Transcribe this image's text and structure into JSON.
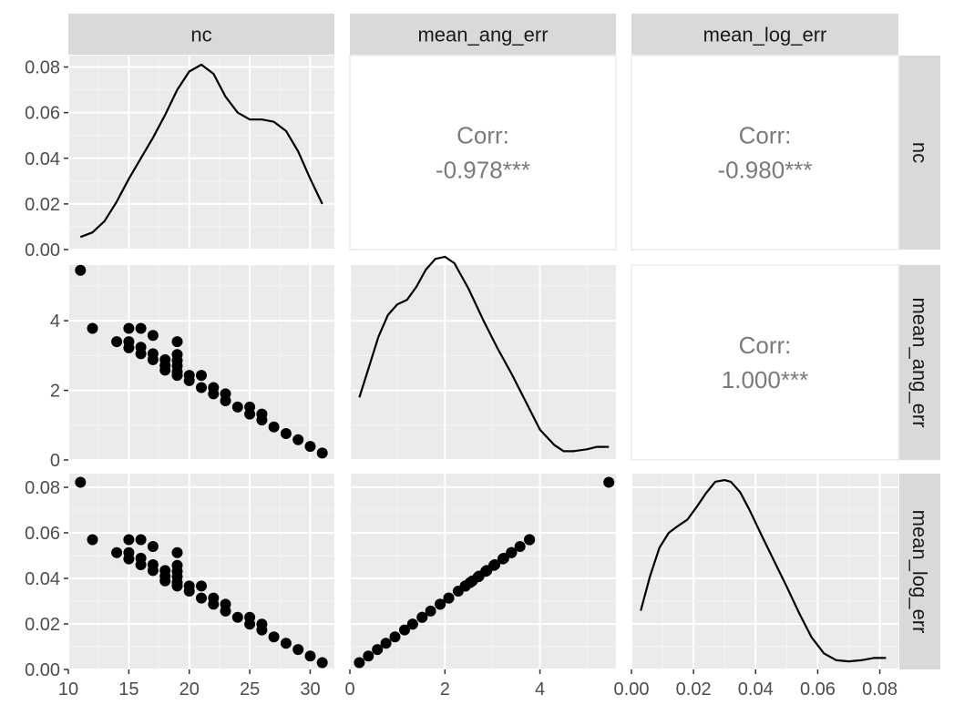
{
  "chart_data": {
    "type": "scatter-matrix",
    "variables": [
      "nc",
      "mean_ang_err",
      "mean_log_err"
    ],
    "axis_ticks": {
      "nc": [
        "10",
        "15",
        "20",
        "25",
        "30"
      ],
      "mean_ang_err": [
        "0",
        "2",
        "4"
      ],
      "mean_log_err": [
        "0.00",
        "0.02",
        "0.04",
        "0.06",
        "0.08"
      ]
    },
    "density_y_ticks": [
      "0.00",
      "0.02",
      "0.04",
      "0.06",
      "0.08"
    ],
    "ranges": {
      "nc": [
        10,
        32
      ],
      "mean_ang_err": [
        0,
        5.6
      ],
      "mean_log_err": [
        0,
        0.086
      ],
      "density": [
        0,
        0.085
      ]
    },
    "correlations": [
      {
        "row": "nc",
        "col": "mean_ang_err",
        "label": "Corr:",
        "value": "-0.978***"
      },
      {
        "row": "nc",
        "col": "mean_log_err",
        "label": "Corr:",
        "value": "-0.980***"
      },
      {
        "row": "mean_ang_err",
        "col": "mean_log_err",
        "label": "Corr:",
        "value": "1.000***"
      }
    ],
    "points": [
      {
        "nc": 11,
        "ang": 5.45
      },
      {
        "nc": 12,
        "ang": 3.78
      },
      {
        "nc": 14,
        "ang": 3.4
      },
      {
        "nc": 15,
        "ang": 3.78
      },
      {
        "nc": 15,
        "ang": 3.4
      },
      {
        "nc": 15,
        "ang": 3.22
      },
      {
        "nc": 16,
        "ang": 3.78
      },
      {
        "nc": 16,
        "ang": 3.24
      },
      {
        "nc": 16,
        "ang": 3.05
      },
      {
        "nc": 17,
        "ang": 3.58
      },
      {
        "nc": 17,
        "ang": 3.05
      },
      {
        "nc": 17,
        "ang": 2.88
      },
      {
        "nc": 18,
        "ang": 2.88
      },
      {
        "nc": 18,
        "ang": 2.72
      },
      {
        "nc": 18,
        "ang": 2.58
      },
      {
        "nc": 19,
        "ang": 3.4
      },
      {
        "nc": 19,
        "ang": 3.03
      },
      {
        "nc": 19,
        "ang": 2.86
      },
      {
        "nc": 19,
        "ang": 2.7
      },
      {
        "nc": 19,
        "ang": 2.53
      },
      {
        "nc": 19,
        "ang": 2.43
      },
      {
        "nc": 20,
        "ang": 2.43
      },
      {
        "nc": 20,
        "ang": 2.28
      },
      {
        "nc": 21,
        "ang": 2.43
      },
      {
        "nc": 21,
        "ang": 2.08
      },
      {
        "nc": 22,
        "ang": 2.08
      },
      {
        "nc": 22,
        "ang": 1.9
      },
      {
        "nc": 23,
        "ang": 1.9
      },
      {
        "nc": 23,
        "ang": 1.7
      },
      {
        "nc": 24,
        "ang": 1.52
      },
      {
        "nc": 25,
        "ang": 1.52
      },
      {
        "nc": 25,
        "ang": 1.32
      },
      {
        "nc": 26,
        "ang": 1.32
      },
      {
        "nc": 26,
        "ang": 1.15
      },
      {
        "nc": 27,
        "ang": 0.95
      },
      {
        "nc": 28,
        "ang": 0.76
      },
      {
        "nc": 29,
        "ang": 0.58
      },
      {
        "nc": 30,
        "ang": 0.39
      },
      {
        "nc": 31,
        "ang": 0.2
      }
    ],
    "log_per_ang": 0.01508,
    "density_curves": {
      "nc": {
        "x": [
          11,
          12,
          13,
          14,
          15,
          16,
          17,
          18,
          19,
          20,
          21,
          22,
          23,
          24,
          25,
          26,
          27,
          28,
          29,
          30,
          31
        ],
        "y": [
          0.0055,
          0.0075,
          0.0125,
          0.021,
          0.031,
          0.04,
          0.049,
          0.059,
          0.07,
          0.078,
          0.081,
          0.077,
          0.067,
          0.06,
          0.057,
          0.057,
          0.056,
          0.052,
          0.043,
          0.031,
          0.02
        ]
      },
      "mean_ang_err": {
        "x": [
          0.2,
          0.4,
          0.6,
          0.8,
          1.0,
          1.2,
          1.4,
          1.6,
          1.8,
          2.0,
          2.2,
          2.5,
          2.8,
          3.1,
          3.4,
          3.7,
          4.0,
          4.3,
          4.5,
          4.7,
          5.0,
          5.2,
          5.45
        ],
        "y": [
          0.0273,
          0.0405,
          0.0537,
          0.0632,
          0.0679,
          0.0698,
          0.0755,
          0.083,
          0.0877,
          0.0886,
          0.0858,
          0.0745,
          0.0613,
          0.049,
          0.0377,
          0.0255,
          0.0132,
          0.0066,
          0.0038,
          0.0038,
          0.0047,
          0.0057,
          0.0057
        ]
      },
      "mean_log_err": {
        "x": [
          0.003,
          0.006,
          0.009,
          0.012,
          0.015,
          0.018,
          0.021,
          0.024,
          0.027,
          0.03,
          0.032,
          0.035,
          0.038,
          0.042,
          0.046,
          0.05,
          0.054,
          0.058,
          0.062,
          0.066,
          0.07,
          0.074,
          0.078,
          0.082
        ],
        "y": [
          0.0255,
          0.0405,
          0.0528,
          0.0593,
          0.0623,
          0.065,
          0.0705,
          0.0765,
          0.0815,
          0.0822,
          0.0815,
          0.077,
          0.0693,
          0.058,
          0.047,
          0.036,
          0.0245,
          0.014,
          0.007,
          0.004,
          0.0035,
          0.004,
          0.005,
          0.005
        ]
      }
    }
  }
}
